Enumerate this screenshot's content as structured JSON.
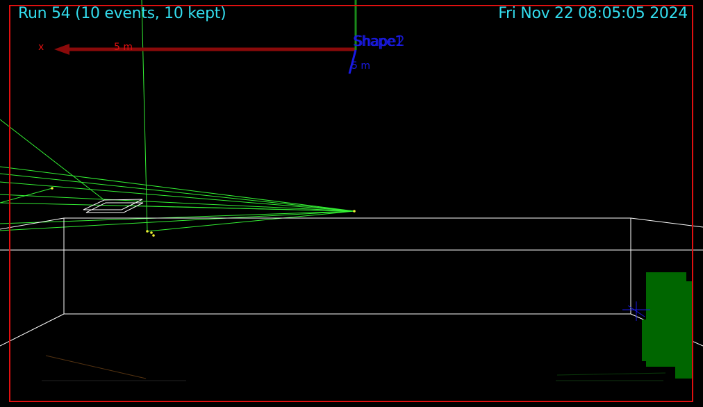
{
  "header": {
    "run_info": "Run 54 (10 events, 10 kept)",
    "datetime": "Fri Nov 22 08:05:05 2024"
  },
  "axes": {
    "x_label": "x",
    "x_scale": "5 m",
    "y_scale": "5 m",
    "shape_label_a": "Shape1",
    "shape_label_b": "Shape2"
  },
  "colors": {
    "frame": "#e01010",
    "hud_text": "#33ddee",
    "x_axis": "#8a0a0a",
    "x_axis_text": "#e01010",
    "y_axis": "#1a8a1a",
    "z_axis": "#1a1ae6",
    "trajectory": "#33ee33",
    "hit_point": "#eeee33",
    "geometry": "#ffffff",
    "green_block": "#006600"
  }
}
